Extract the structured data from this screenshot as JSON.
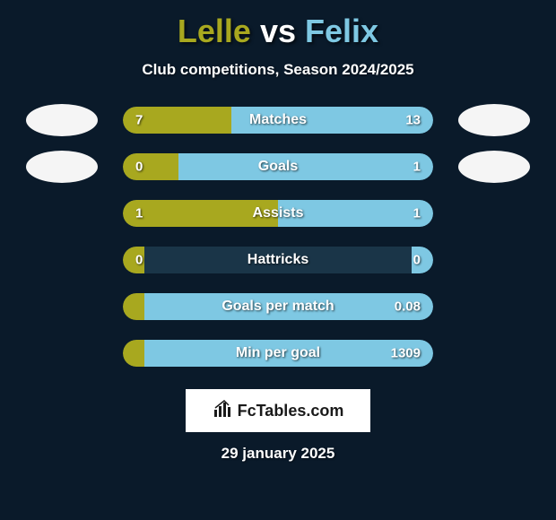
{
  "title": {
    "player1": "Lelle",
    "vs": "vs",
    "player2": "Felix"
  },
  "subtitle": "Club competitions, Season 2024/2025",
  "colors": {
    "player1": "#a8a81f",
    "player2": "#7ec8e3",
    "background": "#0a1a2a",
    "bar_bg": "#1a3548",
    "white": "#ffffff"
  },
  "stats": [
    {
      "label": "Matches",
      "left_val": "7",
      "right_val": "13",
      "left_pct": 35,
      "right_pct": 65,
      "show_avatars": true
    },
    {
      "label": "Goals",
      "left_val": "0",
      "right_val": "1",
      "left_pct": 18,
      "right_pct": 82,
      "show_avatars": true
    },
    {
      "label": "Assists",
      "left_val": "1",
      "right_val": "1",
      "left_pct": 50,
      "right_pct": 50,
      "show_avatars": false
    },
    {
      "label": "Hattricks",
      "left_val": "0",
      "right_val": "0",
      "left_pct": 7,
      "right_pct": 7,
      "show_avatars": false
    },
    {
      "label": "Goals per match",
      "left_val": "",
      "right_val": "0.08",
      "left_pct": 7,
      "right_pct": 93,
      "show_avatars": false
    },
    {
      "label": "Min per goal",
      "left_val": "",
      "right_val": "1309",
      "left_pct": 7,
      "right_pct": 93,
      "show_avatars": false
    }
  ],
  "branding": "FcTables.com",
  "date": "29 january 2025"
}
